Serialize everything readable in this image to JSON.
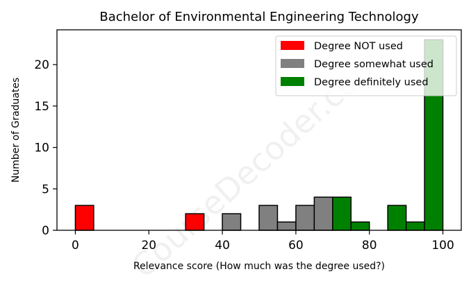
{
  "chart_data": {
    "type": "bar",
    "title": "Bachelor of Environmental Engineering Technology",
    "xlabel": "Relevance score (How much was the degree used?)",
    "ylabel": "Number of Graduates",
    "xlim": [
      -5,
      105
    ],
    "ylim": [
      0,
      24.2
    ],
    "xticks": [
      0,
      20,
      40,
      60,
      80,
      100
    ],
    "yticks": [
      0,
      5,
      10,
      15,
      20
    ],
    "bin_width": 5,
    "series": [
      {
        "name": "Degree NOT used",
        "color": "#ff0000",
        "bins": [
          {
            "x": 0,
            "count": 3
          },
          {
            "x": 30,
            "count": 2
          }
        ]
      },
      {
        "name": "Degree somewhat used",
        "color": "#808080",
        "bins": [
          {
            "x": 40,
            "count": 2
          },
          {
            "x": 50,
            "count": 3
          },
          {
            "x": 55,
            "count": 1
          },
          {
            "x": 60,
            "count": 3
          },
          {
            "x": 65,
            "count": 4
          }
        ]
      },
      {
        "name": "Degree definitely used",
        "color": "#008000",
        "bins": [
          {
            "x": 70,
            "count": 4
          },
          {
            "x": 75,
            "count": 1
          },
          {
            "x": 85,
            "count": 3
          },
          {
            "x": 90,
            "count": 1
          },
          {
            "x": 95,
            "count": 23
          }
        ]
      }
    ],
    "legend_position": "top-right",
    "grid": false
  },
  "watermark": "CourseDecoder.com"
}
